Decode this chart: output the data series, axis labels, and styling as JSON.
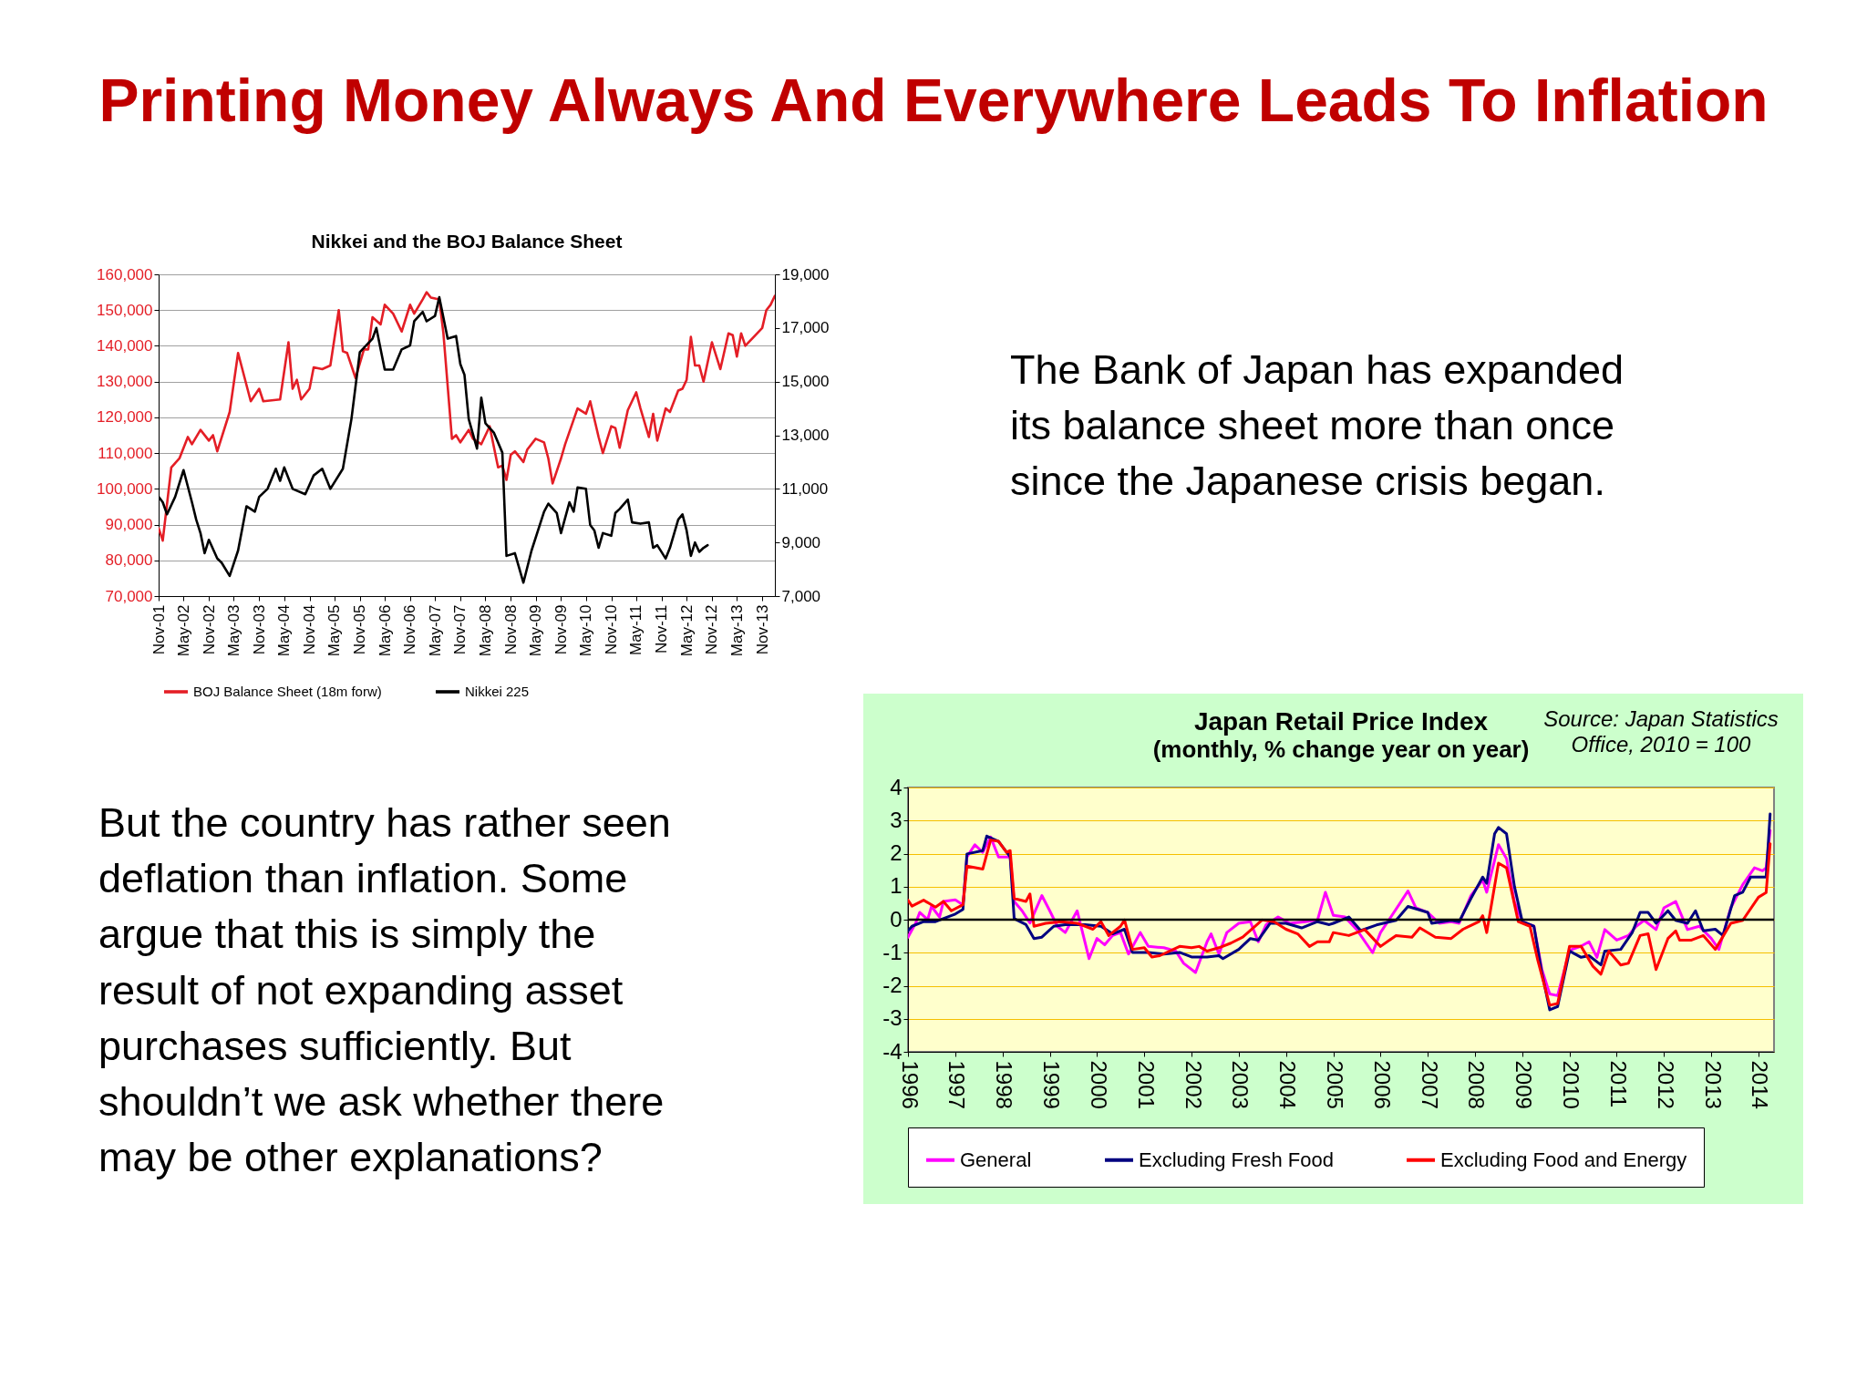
{
  "chart_data": [
    {
      "type": "other",
      "title": "Printing Money Always And Everywhere Leads To Inflation",
      "annotations": [
        "The Bank of Japan  has expanded its balance sheet more than once since the Japanese crisis began.",
        "But the country has rather seen deflation than inflation. Some argue that this is simply the result of not expanding asset purchases sufficiently. But shouldn’t we ask whether there may be other explanations?"
      ]
    },
    {
      "type": "line",
      "title": "Nikkei and the BOJ Balance Sheet",
      "xlim": [
        "2001-11",
        "2014-02"
      ],
      "xticks": [
        {
          "value": "2001-11",
          "label": "Nov-01"
        },
        {
          "value": "2002-05",
          "label": "May-02"
        },
        {
          "value": "2002-11",
          "label": "Nov-02"
        },
        {
          "value": "2003-05",
          "label": "May-03"
        },
        {
          "value": "2003-11",
          "label": "Nov-03"
        },
        {
          "value": "2004-05",
          "label": "May-04"
        },
        {
          "value": "2004-11",
          "label": "Nov-04"
        },
        {
          "value": "2005-05",
          "label": "May-05"
        },
        {
          "value": "2005-11",
          "label": "Nov-05"
        },
        {
          "value": "2006-05",
          "label": "May-06"
        },
        {
          "value": "2006-11",
          "label": "Nov-06"
        },
        {
          "value": "2007-05",
          "label": "May-07"
        },
        {
          "value": "2007-11",
          "label": "Nov-07"
        },
        {
          "value": "2008-05",
          "label": "May-08"
        },
        {
          "value": "2008-11",
          "label": "Nov-08"
        },
        {
          "value": "2009-05",
          "label": "May-09"
        },
        {
          "value": "2009-11",
          "label": "Nov-09"
        },
        {
          "value": "2010-05",
          "label": "May-10"
        },
        {
          "value": "2010-11",
          "label": "Nov-10"
        },
        {
          "value": "2011-05",
          "label": "May-11"
        },
        {
          "value": "2011-11",
          "label": "Nov-11"
        },
        {
          "value": "2012-05",
          "label": "May-12"
        },
        {
          "value": "2012-11",
          "label": "Nov-12"
        },
        {
          "value": "2013-05",
          "label": "May-13"
        },
        {
          "value": "2013-11",
          "label": "Nov-13"
        }
      ],
      "ylim": [
        70000,
        160000
      ],
      "yticks": [
        {
          "value": 70000,
          "label": "70,000"
        },
        {
          "value": 80000,
          "label": "80,000"
        },
        {
          "value": 90000,
          "label": "90,000"
        },
        {
          "value": 100000,
          "label": "100,000"
        },
        {
          "value": 110000,
          "label": "110,000"
        },
        {
          "value": 120000,
          "label": "120,000"
        },
        {
          "value": 130000,
          "label": "130,000"
        },
        {
          "value": 140000,
          "label": "140,000"
        },
        {
          "value": 150000,
          "label": "150,000"
        },
        {
          "value": 160000,
          "label": "160,000"
        }
      ],
      "y2lim": [
        7000,
        19000
      ],
      "y2ticks": [
        {
          "value": 7000,
          "label": "7,000"
        },
        {
          "value": 9000,
          "label": "9,000"
        },
        {
          "value": 11000,
          "label": "11,000"
        },
        {
          "value": 13000,
          "label": "13,000"
        },
        {
          "value": 15000,
          "label": "15,000"
        },
        {
          "value": 17000,
          "label": "17,000"
        },
        {
          "value": 19000,
          "label": "19,000"
        }
      ],
      "grid": "y",
      "legend": "bottom",
      "series": [
        {
          "name": "BOJ Balance Sheet (18m forw)",
          "color": "#e41e26",
          "x": [
            "2001-11",
            "2001-12",
            "2002-02",
            "2002-04",
            "2002-06",
            "2002-07",
            "2002-09",
            "2002-11",
            "2002-12",
            "2003-01",
            "2003-04",
            "2003-06",
            "2003-09",
            "2003-11",
            "2003-12",
            "2004-04",
            "2004-06",
            "2004-07",
            "2004-08",
            "2004-09",
            "2004-11",
            "2004-12",
            "2005-02",
            "2005-04",
            "2005-06",
            "2005-07",
            "2005-08",
            "2005-10",
            "2005-12",
            "2006-01",
            "2006-02",
            "2006-04",
            "2006-05",
            "2006-07",
            "2006-09",
            "2006-11",
            "2006-12",
            "2007-02",
            "2007-03",
            "2007-04",
            "2007-06",
            "2007-07",
            "2007-09",
            "2007-10",
            "2007-11",
            "2008-01",
            "2008-02",
            "2008-04",
            "2008-06",
            "2008-08",
            "2008-09",
            "2008-10",
            "2008-11",
            "2008-12",
            "2009-02",
            "2009-03",
            "2009-05",
            "2009-07",
            "2009-08",
            "2009-09",
            "2009-11",
            "2009-12",
            "2010-03",
            "2010-05",
            "2010-06",
            "2010-08",
            "2010-09",
            "2010-11",
            "2010-12",
            "2011-01",
            "2011-03",
            "2011-05",
            "2011-06",
            "2011-08",
            "2011-09",
            "2011-10",
            "2011-12",
            "2012-01",
            "2012-03",
            "2012-04",
            "2012-05",
            "2012-06",
            "2012-07",
            "2012-08",
            "2012-09",
            "2012-11",
            "2013-01",
            "2013-03",
            "2013-04",
            "2013-05",
            "2013-06",
            "2013-07",
            "2013-09",
            "2013-11",
            "2013-12",
            "2014-01",
            "2014-02"
          ],
          "values": [
            89000,
            85500,
            106000,
            108500,
            114500,
            112500,
            116500,
            113500,
            115000,
            110500,
            121500,
            138000,
            124500,
            128000,
            124500,
            125000,
            141000,
            128000,
            130500,
            125000,
            128000,
            134000,
            133500,
            134500,
            150000,
            138500,
            138000,
            131000,
            139000,
            139000,
            148000,
            146000,
            151500,
            149000,
            144000,
            151500,
            149000,
            153000,
            155000,
            153500,
            153000,
            143500,
            114000,
            115000,
            113000,
            116500,
            114000,
            112500,
            117500,
            106000,
            106500,
            102500,
            109500,
            110500,
            107500,
            111000,
            114000,
            113000,
            108500,
            101500,
            108500,
            112500,
            122500,
            121000,
            124500,
            114500,
            110000,
            117500,
            117000,
            111500,
            122000,
            127000,
            122500,
            114500,
            121000,
            113500,
            122500,
            121500,
            127500,
            128000,
            130500,
            142500,
            134500,
            134500,
            130000,
            141000,
            133500,
            143500,
            143000,
            137000,
            143500,
            140000,
            142500,
            145000,
            150000,
            151500,
            154000
          ]
        },
        {
          "name": "Nikkei 225",
          "color": "#000000",
          "axis": "y2",
          "x": [
            "2001-11",
            "2001-12",
            "2002-01",
            "2002-03",
            "2002-05",
            "2002-07",
            "2002-08",
            "2002-09",
            "2002-10",
            "2002-11",
            "2003-01",
            "2003-02",
            "2003-04",
            "2003-06",
            "2003-08",
            "2003-10",
            "2003-11",
            "2004-01",
            "2004-03",
            "2004-04",
            "2004-05",
            "2004-07",
            "2004-10",
            "2004-12",
            "2005-02",
            "2005-04",
            "2005-07",
            "2005-09",
            "2005-11",
            "2006-02",
            "2006-03",
            "2006-05",
            "2006-07",
            "2006-09",
            "2006-11",
            "2006-12",
            "2007-02",
            "2007-03",
            "2007-05",
            "2007-06",
            "2007-08",
            "2007-10",
            "2007-11",
            "2007-12",
            "2008-01",
            "2008-03",
            "2008-04",
            "2008-05",
            "2008-07",
            "2008-09",
            "2008-10",
            "2008-12",
            "2009-02",
            "2009-04",
            "2009-07",
            "2009-08",
            "2009-10",
            "2009-11",
            "2010-01",
            "2010-02",
            "2010-03",
            "2010-05",
            "2010-06",
            "2010-07",
            "2010-08",
            "2010-09",
            "2010-11",
            "2010-12",
            "2011-01",
            "2011-03",
            "2011-04",
            "2011-06",
            "2011-08",
            "2011-09",
            "2011-10",
            "2011-12",
            "2012-01",
            "2012-03",
            "2012-04",
            "2012-05",
            "2012-06",
            "2012-07",
            "2012-08",
            "2012-09",
            "2012-10"
          ],
          "values": [
            10700,
            10500,
            10050,
            10700,
            11700,
            10500,
            9850,
            9350,
            8600,
            9100,
            8400,
            8250,
            7750,
            8700,
            10350,
            10150,
            10700,
            11000,
            11750,
            11300,
            11800,
            11000,
            10800,
            11500,
            11750,
            11000,
            11750,
            13600,
            16100,
            16600,
            17000,
            15450,
            15450,
            16200,
            16350,
            17250,
            17600,
            17250,
            17450,
            18150,
            16600,
            16700,
            15650,
            15250,
            13600,
            12500,
            14400,
            13450,
            13100,
            12350,
            8500,
            8600,
            7500,
            8700,
            10150,
            10450,
            10100,
            9350,
            10500,
            10150,
            11050,
            11000,
            9650,
            9450,
            8800,
            9350,
            9250,
            10100,
            10250,
            10600,
            9750,
            9700,
            9750,
            8800,
            8900,
            8400,
            8800,
            9850,
            10050,
            9450,
            8500,
            9000,
            8650,
            8800,
            8900
          ]
        }
      ]
    },
    {
      "type": "line",
      "title": "Japan  Retail Price Index",
      "subtitle": "(monthly, % change year on year)",
      "annotations": [
        "Source: Japan Statistics Office, 2010 = 100"
      ],
      "xlim": [
        "1996-01",
        "2014-05"
      ],
      "xticks": [
        "1996",
        "1997",
        "1998",
        "1999",
        "2000",
        "2001",
        "2002",
        "2003",
        "2004",
        "2005",
        "2006",
        "2007",
        "2008",
        "2009",
        "2010",
        "2011",
        "2012",
        "2013",
        "2014"
      ],
      "ylim": [
        -4,
        4
      ],
      "yticks": [
        -4,
        -3,
        -2,
        -1,
        0,
        1,
        2,
        3,
        4
      ],
      "grid": "y",
      "legend": "bottom",
      "ref_lines": [
        {
          "axis": "y",
          "value": 0,
          "color": "#000000"
        }
      ],
      "series": [
        {
          "name": "General",
          "color": "#ff00ff",
          "x": [
            "1996-01",
            "1996-03",
            "1996-04",
            "1996-06",
            "1996-07",
            "1996-09",
            "1996-10",
            "1997-01",
            "1997-03",
            "1997-04",
            "1997-06",
            "1997-08",
            "1997-10",
            "1997-12",
            "1998-03",
            "1998-04",
            "1998-06",
            "1998-08",
            "1998-11",
            "1999-01",
            "1999-03",
            "1999-05",
            "1999-08",
            "1999-11",
            "2000-01",
            "2000-03",
            "2000-05",
            "2000-07",
            "2000-09",
            "2000-12",
            "2001-02",
            "2001-06",
            "2001-09",
            "2001-11",
            "2002-02",
            "2002-05",
            "2002-06",
            "2002-08",
            "2002-10",
            "2003-01",
            "2003-04",
            "2003-06",
            "2003-08",
            "2003-11",
            "2004-02",
            "2004-06",
            "2004-09",
            "2004-11",
            "2005-01",
            "2005-04",
            "2005-07",
            "2005-11",
            "2006-01",
            "2006-06",
            "2006-08",
            "2006-10",
            "2007-01",
            "2007-04",
            "2007-07",
            "2007-09",
            "2007-12",
            "2008-03",
            "2008-04",
            "2008-07",
            "2008-09",
            "2008-11",
            "2009-01",
            "2009-04",
            "2009-06",
            "2009-08",
            "2009-10",
            "2010-01",
            "2010-04",
            "2010-06",
            "2010-08",
            "2010-10",
            "2011-01",
            "2011-04",
            "2011-06",
            "2011-08",
            "2011-11",
            "2012-01",
            "2012-04",
            "2012-07",
            "2012-10",
            "2013-01",
            "2013-03",
            "2013-06",
            "2013-09",
            "2013-12",
            "2014-02",
            "2014-03",
            "2014-04"
          ],
          "values": [
            -0.53,
            -0.1,
            0.22,
            0,
            0.4,
            0.08,
            0.55,
            0.6,
            0.45,
            1.9,
            2.27,
            2.04,
            2.5,
            1.9,
            1.9,
            0.55,
            0.27,
            -0.1,
            0.73,
            0.27,
            -0.2,
            -0.39,
            0.27,
            -1.18,
            -0.57,
            -0.76,
            -0.48,
            -0.39,
            -1.04,
            -0.39,
            -0.81,
            -0.85,
            -0.95,
            -1.32,
            -1.6,
            -0.67,
            -0.43,
            -1.04,
            -0.39,
            -0.11,
            -0.06,
            -0.67,
            -0.15,
            0.08,
            -0.11,
            -0.06,
            -0.01,
            0.83,
            0.13,
            0.08,
            -0.3,
            -1.0,
            -0.39,
            0.5,
            0.87,
            0.36,
            0.22,
            -0.11,
            -0.06,
            -0.11,
            0.73,
            1.2,
            0.83,
            2.27,
            1.85,
            0.54,
            -0.06,
            -0.2,
            -1.5,
            -2.25,
            -2.3,
            -0.93,
            -0.8,
            -0.67,
            -1.14,
            -0.3,
            -0.62,
            -0.48,
            -0.2,
            -0.02,
            -0.3,
            0.36,
            0.55,
            -0.3,
            -0.2,
            -0.57,
            -0.9,
            0.36,
            1.06,
            1.57,
            1.48,
            1.57,
            2.7
          ]
        },
        {
          "name": "Excluding Fresh Food",
          "color": "#000080",
          "x": [
            "1996-01",
            "1996-02",
            "1996-05",
            "1996-08",
            "1996-11",
            "1997-01",
            "1997-03",
            "1997-04",
            "1997-08",
            "1997-09",
            "1997-12",
            "1998-03",
            "1998-04",
            "1998-07",
            "1998-09",
            "1998-11",
            "1999-02",
            "1999-05",
            "1999-10",
            "2000-02",
            "2000-05",
            "2000-08",
            "2000-10",
            "2001-02",
            "2001-06",
            "2001-10",
            "2002-01",
            "2002-05",
            "2002-08",
            "2002-09",
            "2003-01",
            "2003-04",
            "2003-06",
            "2003-09",
            "2004-01",
            "2004-05",
            "2004-09",
            "2004-12",
            "2005-01",
            "2005-05",
            "2005-08",
            "2005-12",
            "2006-05",
            "2006-08",
            "2007-01",
            "2007-02",
            "2007-07",
            "2007-09",
            "2007-12",
            "2008-03",
            "2008-04",
            "2008-06",
            "2008-07",
            "2008-09",
            "2008-11",
            "2009-01",
            "2009-04",
            "2009-06",
            "2009-08",
            "2009-10",
            "2010-01",
            "2010-04",
            "2010-06",
            "2010-09",
            "2010-10",
            "2011-02",
            "2011-05",
            "2011-07",
            "2011-09",
            "2011-11",
            "2012-02",
            "2012-04",
            "2012-07",
            "2012-09",
            "2012-11",
            "2013-02",
            "2013-04",
            "2013-07",
            "2013-09",
            "2013-11",
            "2014-03",
            "2014-04"
          ],
          "values": [
            -0.34,
            -0.2,
            -0.06,
            -0.06,
            0.08,
            0.17,
            0.31,
            1.99,
            2.09,
            2.53,
            2.37,
            1.9,
            0.03,
            -0.15,
            -0.57,
            -0.53,
            -0.2,
            -0.15,
            -0.15,
            -0.2,
            -0.43,
            -0.29,
            -0.99,
            -0.99,
            -1.04,
            -0.99,
            -1.13,
            -1.13,
            -1.09,
            -1.18,
            -0.9,
            -0.57,
            -0.62,
            -0.11,
            -0.11,
            -0.25,
            -0.06,
            -0.15,
            -0.11,
            0.08,
            -0.33,
            -0.16,
            -0.02,
            0.4,
            0.22,
            -0.11,
            -0.02,
            -0.06,
            0.64,
            1.29,
            1.1,
            2.6,
            2.79,
            2.6,
            1.01,
            -0.06,
            -0.2,
            -1.6,
            -2.73,
            -2.63,
            -0.95,
            -1.14,
            -1.09,
            -1.37,
            -0.95,
            -0.9,
            -0.39,
            0.22,
            0.22,
            -0.11,
            0.27,
            -0.02,
            -0.11,
            0.27,
            -0.34,
            -0.29,
            -0.48,
            0.73,
            0.83,
            1.29,
            1.29,
            3.2
          ]
        },
        {
          "name": "Excluding Food and Energy",
          "color": "#ff0000",
          "x": [
            "1996-01",
            "1996-02",
            "1996-05",
            "1996-08",
            "1996-10",
            "1996-12",
            "1997-03",
            "1997-04",
            "1997-08",
            "1997-10",
            "1997-12",
            "1998-02",
            "1998-03",
            "1998-04",
            "1998-07",
            "1998-08",
            "1998-09",
            "1998-12",
            "1999-04",
            "1999-08",
            "1999-12",
            "2000-02",
            "2000-04",
            "2000-07",
            "2000-08",
            "2000-10",
            "2001-01",
            "2001-03",
            "2001-05",
            "2001-10",
            "2002-01",
            "2002-03",
            "2002-05",
            "2002-08",
            "2002-11",
            "2003-02",
            "2003-07",
            "2003-10",
            "2004-01",
            "2004-04",
            "2004-07",
            "2004-09",
            "2004-12",
            "2005-01",
            "2005-05",
            "2005-09",
            "2006-01",
            "2006-05",
            "2006-09",
            "2006-11",
            "2007-03",
            "2007-07",
            "2007-10",
            "2008-02",
            "2008-03",
            "2008-04",
            "2008-07",
            "2008-09",
            "2008-12",
            "2009-03",
            "2009-05",
            "2009-08",
            "2009-10",
            "2010-01",
            "2010-04",
            "2010-07",
            "2010-09",
            "2010-11",
            "2011-02",
            "2011-04",
            "2011-07",
            "2011-09",
            "2011-11",
            "2012-02",
            "2012-04",
            "2012-05",
            "2012-08",
            "2012-11",
            "2013-02",
            "2013-06",
            "2013-09",
            "2014-01",
            "2014-03",
            "2014-04"
          ],
          "values": [
            0.59,
            0.41,
            0.59,
            0.38,
            0.55,
            0.27,
            0.45,
            1.62,
            1.53,
            2.41,
            2.37,
            2.04,
            2.09,
            0.64,
            0.55,
            0.78,
            -0.2,
            -0.11,
            -0.06,
            -0.11,
            -0.29,
            -0.06,
            -0.48,
            -0.2,
            -0.01,
            -0.9,
            -0.85,
            -1.13,
            -1.09,
            -0.81,
            -0.85,
            -0.81,
            -0.95,
            -0.85,
            -0.71,
            -0.53,
            -0.01,
            -0.06,
            -0.29,
            -0.43,
            -0.81,
            -0.67,
            -0.67,
            -0.39,
            -0.48,
            -0.3,
            -0.81,
            -0.48,
            -0.53,
            -0.25,
            -0.53,
            -0.57,
            -0.29,
            -0.06,
            0.12,
            -0.39,
            1.71,
            1.57,
            -0.06,
            -0.2,
            -1.23,
            -2.59,
            -2.54,
            -0.81,
            -0.81,
            -1.41,
            -1.65,
            -0.95,
            -1.37,
            -1.32,
            -0.48,
            -0.43,
            -1.51,
            -0.57,
            -0.34,
            -0.62,
            -0.62,
            -0.48,
            -0.9,
            -0.11,
            -0.02,
            0.68,
            0.82,
            2.3
          ]
        }
      ]
    }
  ]
}
